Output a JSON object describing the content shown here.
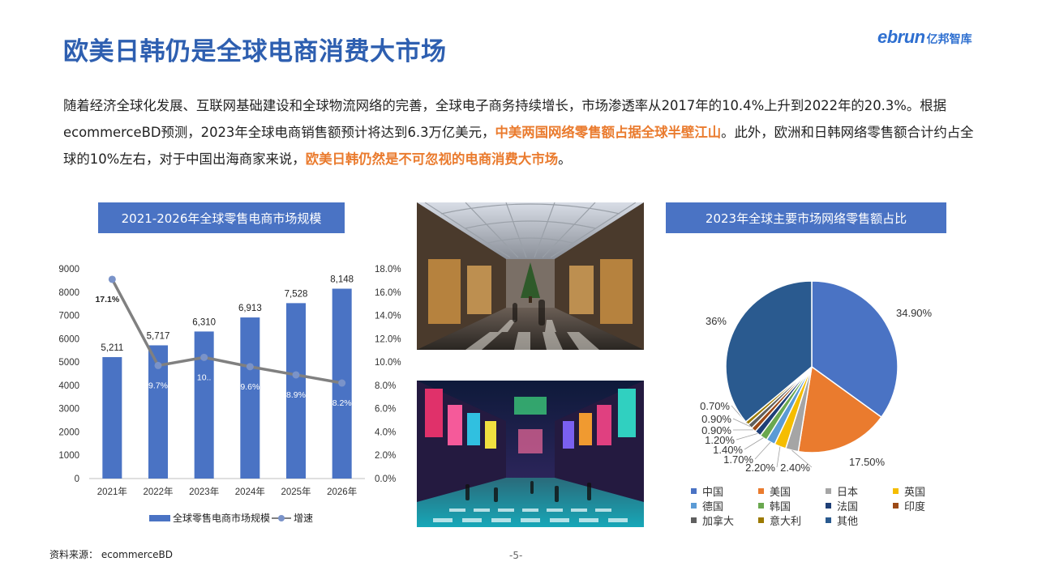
{
  "page": {
    "title": "欧美日韩仍是全球电商消费大市场",
    "logo_mark": "ebrun",
    "logo_text": "亿邦智库",
    "intro": [
      {
        "text": "随着经济全球化发展、互联网基础建设和全球物流网络的完善，全球电子商务持续增长，市场渗透率从2017年的10.4%上升到2022年的20.3%。根据ecommerceBD预测，2023年全球电商销售额预计将达到6.3万亿美元，",
        "highlight": false
      },
      {
        "text": "中美两国网络零售额占据全球半壁江山",
        "highlight": true
      },
      {
        "text": "。此外，欧洲和日韩网络零售额合计约占全球的10%左右，对于中国出海商家来说，",
        "highlight": false
      },
      {
        "text": "欧美日韩仍然是不可忽视的电商消费大市场",
        "highlight": true
      },
      {
        "text": "。",
        "highlight": false
      }
    ],
    "source": "资料来源：  ecommerceBD",
    "page_number": "-5-"
  },
  "chart_data": [
    {
      "type": "bar",
      "title": "2021-2026年全球零售电商市场规模",
      "categories": [
        "2021年",
        "2022年",
        "2023年",
        "2024年",
        "2025年",
        "2026年"
      ],
      "series": [
        {
          "name": "全球零售电商市场规模",
          "type": "bar",
          "axis": "left",
          "values": [
            5211,
            5717,
            6310,
            6913,
            7528,
            8148
          ],
          "labels": [
            "5,211",
            "5,717",
            "6,310",
            "6,913",
            "7,528",
            "8,148"
          ],
          "color": "#4a73c4"
        },
        {
          "name": "增速",
          "type": "line",
          "axis": "right",
          "values": [
            17.1,
            9.7,
            10.4,
            9.6,
            8.9,
            8.2
          ],
          "labels": [
            "17.1%",
            "9.7%",
            "10..",
            "9.6%",
            "8.9%",
            "8.2%"
          ],
          "color": "#808080",
          "marker_color": "#7a93c9"
        }
      ],
      "y_left": {
        "min": 0,
        "max": 9000,
        "ticks": [
          "0",
          "1000",
          "2000",
          "3000",
          "4000",
          "5000",
          "6000",
          "7000",
          "8000",
          "9000"
        ]
      },
      "y_right": {
        "min": 0,
        "max": 18,
        "ticks": [
          "0.0%",
          "2.0%",
          "4.0%",
          "6.0%",
          "8.0%",
          "10.0%",
          "12.0%",
          "14.0%",
          "16.0%",
          "18.0%"
        ]
      },
      "grid": false,
      "legend": "bottom"
    },
    {
      "type": "pie",
      "title": "2023年全球主要市场网络零售额占比",
      "slices": [
        {
          "name": "中国",
          "value": 34.9,
          "label": "34.90%",
          "color": "#4a73c4"
        },
        {
          "name": "美国",
          "value": 17.5,
          "label": "17.50%",
          "color": "#ea7b2e"
        },
        {
          "name": "日本",
          "value": 2.4,
          "label": "2.40%",
          "color": "#a5a5a5"
        },
        {
          "name": "英国",
          "value": 2.2,
          "label": "2.20%",
          "color": "#f5bd00"
        },
        {
          "name": "德国",
          "value": 1.7,
          "label": "1.70%",
          "color": "#5b9bd5"
        },
        {
          "name": "韩国",
          "value": 1.4,
          "label": "1.40%",
          "color": "#6aa84f"
        },
        {
          "name": "法国",
          "value": 1.2,
          "label": "1.20%",
          "color": "#1f3f77"
        },
        {
          "name": "印度",
          "value": 0.9,
          "label": "0.90%",
          "color": "#9c4a16"
        },
        {
          "name": "加拿大",
          "value": 0.9,
          "label": "0.90%",
          "color": "#5f5f5f"
        },
        {
          "name": "意大利",
          "value": 0.7,
          "label": "0.70%",
          "color": "#9c7a00"
        },
        {
          "name": "其他",
          "value": 36,
          "label": "36%",
          "color": "#2a5a8f"
        }
      ],
      "legend": "bottom"
    }
  ]
}
